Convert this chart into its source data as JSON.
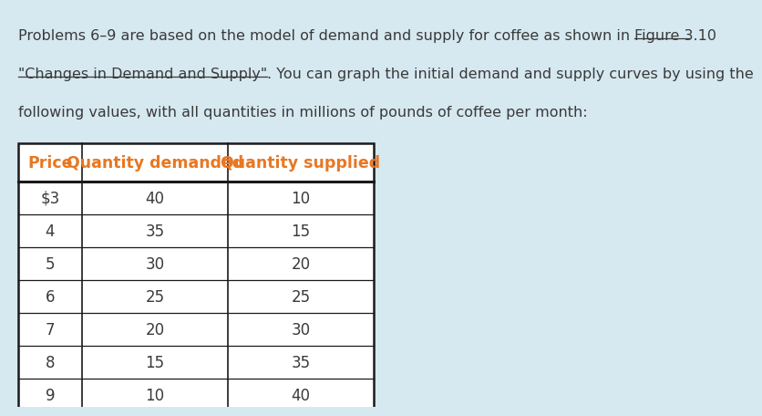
{
  "background_color": "#d6e8f0",
  "text_color": "#3a3a3a",
  "header_color": "#e87722",
  "table_border_color": "#1a1a1a",
  "table_headers": [
    "Price",
    "Quantity demanded",
    "Quantity supplied"
  ],
  "prices": [
    "$3",
    "4",
    "5",
    "6",
    "7",
    "8",
    "9"
  ],
  "qty_demanded": [
    "40",
    "35",
    "30",
    "25",
    "20",
    "15",
    "10"
  ],
  "qty_supplied": [
    "10",
    "15",
    "20",
    "25",
    "30",
    "35",
    "40"
  ],
  "font_size_para": 11.5,
  "font_size_table": 12.0,
  "font_size_header": 12.5,
  "line1_normal": "Problems 6–9 are based on the model of demand and supply for coffee as shown in ",
  "line1_underlined": "Figure 3.10",
  "line2_underlined": "\"Changes in Demand and Supply\"",
  "line2_normal": ". You can graph the initial demand and supply curves by using the",
  "line3": "following values, with all quantities in millions of pounds of coffee per month:"
}
